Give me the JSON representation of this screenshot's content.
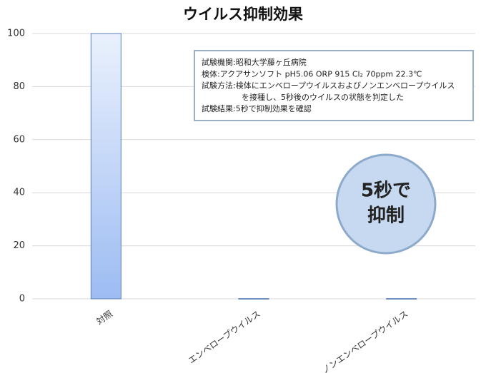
{
  "chart_data": {
    "type": "bar",
    "title": "ウイルス抑制効果",
    "categories": [
      "対照",
      "エンベロープウイルス",
      "ノンエンベロープウイルス"
    ],
    "values": [
      100,
      0.1,
      0.1
    ],
    "color": "#9dbcf2",
    "ylim": [
      0,
      100
    ],
    "yticks": [
      0,
      20,
      40,
      60,
      80,
      100
    ],
    "grid": true,
    "annotations": {
      "box": [
        "試験機関:昭和大学藤ヶ丘病院",
        "検体:アクアサンソフト pH5.06 ORP 915 Cl₂ 70ppm 22.3℃",
        "試験方法:検体にエンベロープウイルスおよびノンエンベロープウイルス",
        "を接種し、5秒後のウイルスの状態を判定した",
        "試験結果:5秒で抑制効果を確認"
      ],
      "callout": [
        "5秒で",
        "抑制"
      ]
    }
  }
}
